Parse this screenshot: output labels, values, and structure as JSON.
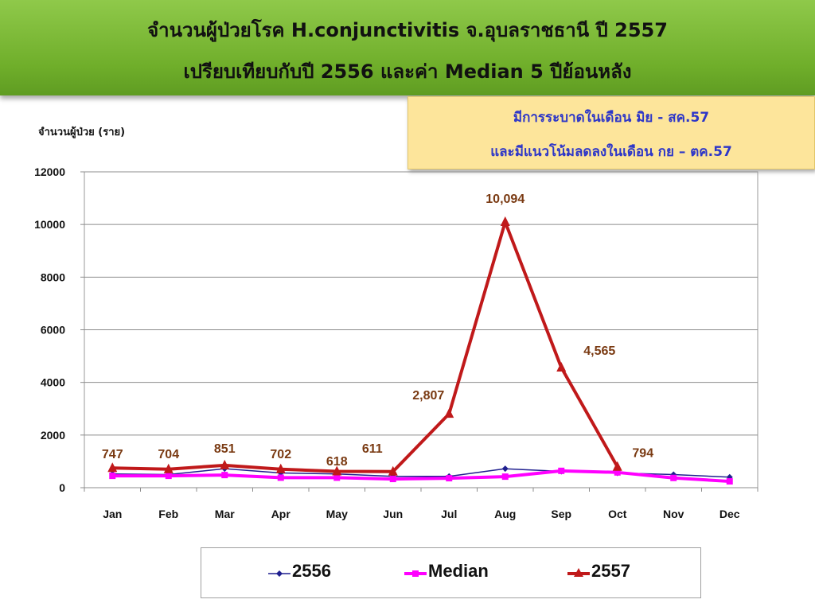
{
  "header": {
    "title_line1": "จำนวนผู้ป่วยโรค H.conjunctivitis  จ.อุบลราชธานี ปี 2557",
    "title_line2": "เปรียบเทียบกับปี 2556  และค่า Median 5 ปีย้อนหลัง"
  },
  "callout": {
    "line1": "มีการระบาดในเดือน มิย - สค.57",
    "line2": "และมีแนวโน้มลดลงในเดือน กย – ตค.57"
  },
  "colors": {
    "s2556": "#1f1f8f",
    "median": "#ff00ff",
    "s2557": "#c0191a",
    "labels": "#7a3a12",
    "header": "#7cba38",
    "callout": "#fde59b"
  },
  "chart_data": {
    "type": "line",
    "title": "",
    "ylabel": "จำนวนผู้ป่วย (ราย)",
    "xlabel": "",
    "ylim": [
      0,
      12000
    ],
    "yticks": [
      0,
      2000,
      4000,
      6000,
      8000,
      10000,
      12000
    ],
    "grid": true,
    "legend_position": "bottom",
    "categories": [
      "Jan",
      "Feb",
      "Mar",
      "Apr",
      "May",
      "Jun",
      "Jul",
      "Aug",
      "Sep",
      "Oct",
      "Nov",
      "Dec"
    ],
    "series": [
      {
        "name": "2556",
        "marker": "diamond",
        "values": [
          520,
          500,
          720,
          560,
          520,
          430,
          430,
          720,
          620,
          560,
          500,
          400
        ]
      },
      {
        "name": "Median",
        "marker": "square",
        "values": [
          450,
          450,
          480,
          380,
          380,
          330,
          360,
          420,
          640,
          580,
          370,
          240
        ]
      },
      {
        "name": "2557",
        "marker": "triangle",
        "values": [
          747,
          704,
          851,
          702,
          618,
          611,
          2807,
          10094,
          4565,
          794,
          null,
          null
        ]
      }
    ],
    "data_labels": [
      "747",
      "704",
      "851",
      "702",
      "618",
      "611",
      "2,807",
      "10,094",
      "4,565",
      "794"
    ]
  }
}
